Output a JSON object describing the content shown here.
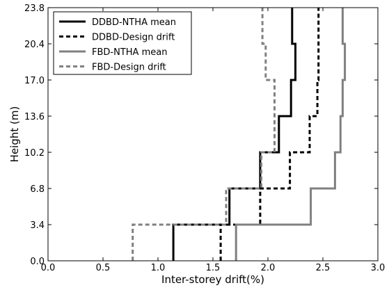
{
  "chart_data": {
    "type": "line",
    "title": "",
    "xlabel": "Inter-storey drift(%)",
    "ylabel": "Height (m)",
    "xlim": [
      0.0,
      3.0
    ],
    "ylim": [
      0.0,
      23.8
    ],
    "xticks": [
      "0.0",
      "0.5",
      "1.0",
      "1.5",
      "2.0",
      "2.5",
      "3.0"
    ],
    "yticks": [
      "0.0",
      "3.4",
      "6.8",
      "10.2",
      "13.6",
      "17.0",
      "20.4",
      "23.8"
    ],
    "legend_position": "top-left",
    "grid": false,
    "storey_boundaries_m": [
      0.0,
      3.4,
      6.8,
      10.2,
      13.6,
      17.0,
      20.4,
      23.8
    ],
    "series": [
      {
        "name": "DDBD-NTHA mean",
        "color": "#000000",
        "style": "solid",
        "values": [
          1.14,
          1.65,
          1.93,
          2.1,
          2.21,
          2.25,
          2.22
        ]
      },
      {
        "name": "DDBD-Design drift",
        "color": "#000000",
        "style": "dashed",
        "values": [
          1.57,
          1.93,
          2.2,
          2.38,
          2.45,
          2.46,
          2.46
        ]
      },
      {
        "name": "FBD-NTHA mean",
        "color": "#808080",
        "style": "solid",
        "values": [
          1.71,
          2.39,
          2.61,
          2.66,
          2.68,
          2.7,
          2.68
        ]
      },
      {
        "name": "FBD-Design drift",
        "color": "#808080",
        "style": "dashed",
        "values": [
          0.77,
          1.62,
          1.94,
          2.06,
          2.06,
          1.98,
          1.95
        ]
      }
    ]
  }
}
